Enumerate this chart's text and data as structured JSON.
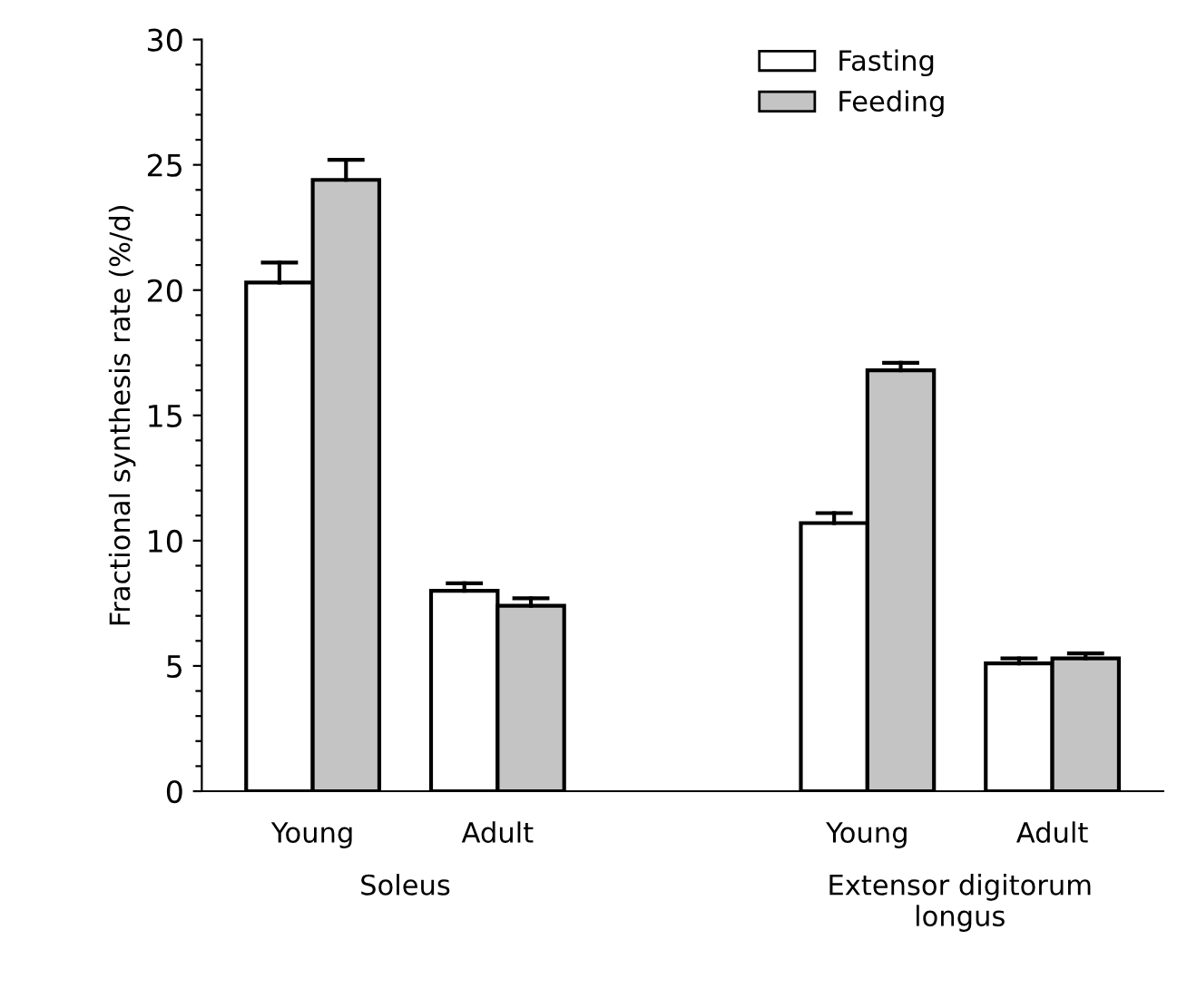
{
  "chart_data": {
    "type": "bar",
    "ylabel": "Fractional synthesis rate (%/d)",
    "categories": [
      "Young",
      "Adult",
      null,
      "Young",
      "Adult"
    ],
    "series": [
      {
        "name": "Fasting",
        "color": "#ffffff",
        "values": [
          20.3,
          8.0,
          null,
          10.7,
          5.1
        ],
        "errors": [
          [
            20.3,
            21.1
          ],
          [
            8.0,
            8.3
          ],
          null,
          [
            10.7,
            11.1
          ],
          [
            5.1,
            5.3
          ]
        ]
      },
      {
        "name": "Feeding",
        "color": "#c4c4c4",
        "values": [
          24.4,
          7.4,
          null,
          16.8,
          5.3
        ],
        "errors": [
          [
            24.4,
            25.2
          ],
          [
            7.4,
            7.7
          ],
          null,
          [
            16.8,
            17.1
          ],
          [
            5.3,
            5.5
          ]
        ]
      }
    ],
    "annotations": [
      "Soleus",
      "Extensor digitorum\nlongus"
    ],
    "ylim": [
      0,
      30
    ],
    "yticks": [
      0,
      {
        "value": 1,
        "label": null
      },
      {
        "value": 2,
        "label": null
      },
      {
        "value": 3,
        "label": null
      },
      {
        "value": 4,
        "label": null
      },
      5,
      {
        "value": 6,
        "label": null
      },
      {
        "value": 7,
        "label": null
      },
      {
        "value": 8,
        "label": null
      },
      {
        "value": 9,
        "label": null
      },
      10,
      {
        "value": 11,
        "label": null
      },
      {
        "value": 12,
        "label": null
      },
      {
        "value": 13,
        "label": null
      },
      {
        "value": 14,
        "label": null
      },
      15,
      {
        "value": 16,
        "label": null
      },
      {
        "value": 17,
        "label": null
      },
      {
        "value": 18,
        "label": null
      },
      {
        "value": 19,
        "label": null
      },
      20,
      {
        "value": 21,
        "label": null
      },
      {
        "value": 22,
        "label": null
      },
      {
        "value": 23,
        "label": null
      },
      {
        "value": 24,
        "label": null
      },
      25,
      {
        "value": 26,
        "label": null
      },
      {
        "value": 27,
        "label": null
      },
      {
        "value": 28,
        "label": null
      },
      {
        "value": 29,
        "label": null
      },
      30
    ],
    "legend": "top right",
    "grid": false
  }
}
